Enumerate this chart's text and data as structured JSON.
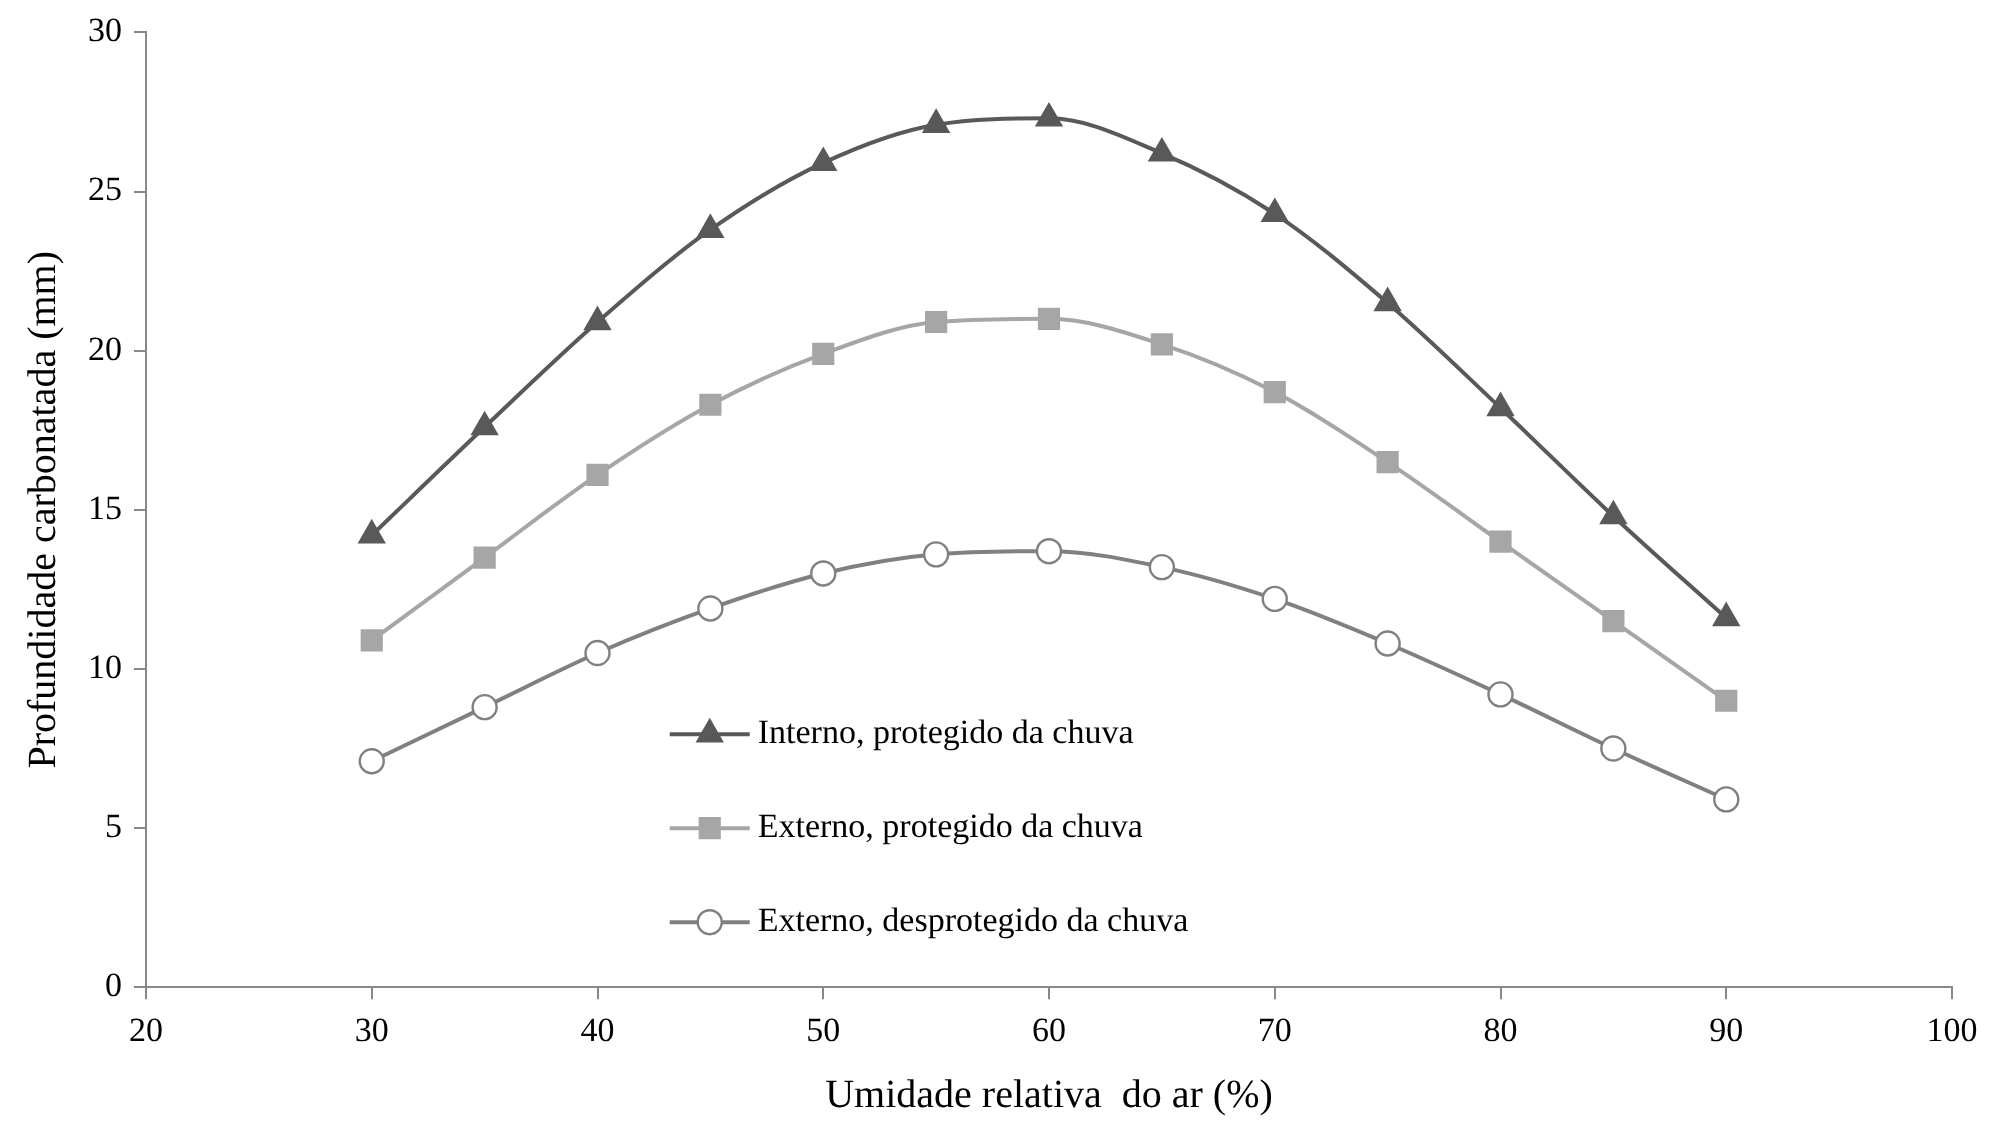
{
  "chart_data": {
    "type": "line",
    "xlabel": "Umidade relativa  do ar (%)",
    "ylabel": "Profundidade carbonatada (mm)",
    "x": [
      30,
      35,
      40,
      45,
      50,
      55,
      60,
      65,
      70,
      75,
      80,
      85,
      90
    ],
    "xlim": [
      20,
      100
    ],
    "xticks": [
      20,
      30,
      40,
      50,
      60,
      70,
      80,
      90,
      100
    ],
    "ylim": [
      0,
      30
    ],
    "yticks": [
      0,
      5,
      10,
      15,
      20,
      25,
      30
    ],
    "grid": false,
    "legend": "bottom",
    "series": [
      {
        "name": "Interno, protegido da chuva",
        "color": "#595959",
        "marker": "triangle",
        "values": [
          14.2,
          17.6,
          20.9,
          23.8,
          25.9,
          27.1,
          27.3,
          26.2,
          24.3,
          21.5,
          18.2,
          14.8,
          11.6
        ]
      },
      {
        "name": "Externo, protegido da chuva",
        "color": "#a6a6a6",
        "marker": "square",
        "values": [
          10.9,
          13.5,
          16.1,
          18.3,
          19.9,
          20.9,
          21.0,
          20.2,
          18.7,
          16.5,
          14.0,
          11.5,
          9.0
        ]
      },
      {
        "name": "Externo, desprotegido da chuva",
        "color": "#808080",
        "marker": "circle",
        "values": [
          7.1,
          8.8,
          10.5,
          11.9,
          13.0,
          13.6,
          13.7,
          13.2,
          12.2,
          10.8,
          9.2,
          7.5,
          5.9
        ]
      }
    ]
  }
}
